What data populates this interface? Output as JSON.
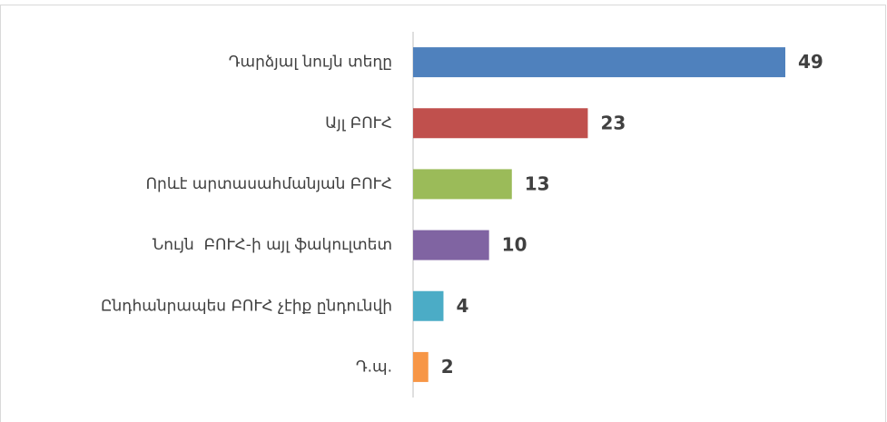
{
  "chart_data": {
    "type": "bar",
    "orientation": "horizontal",
    "categories": [
      "Դարձյալ նույն տեղը",
      "Այլ ԲՈՒՀ",
      "Որևէ արտասահմանյան ԲՈՒՀ",
      "Նույն  ԲՈՒՀ-ի այլ ֆակուլտետ",
      "Ընդհանրապես ԲՈՒՀ չէիք ընդունվի",
      "Դ.պ."
    ],
    "values": [
      49,
      23,
      13,
      10,
      4,
      2
    ],
    "colors": [
      "#4f81bd",
      "#c0504d",
      "#9bbb59",
      "#8064a2",
      "#4bacc6",
      "#f79646"
    ]
  }
}
